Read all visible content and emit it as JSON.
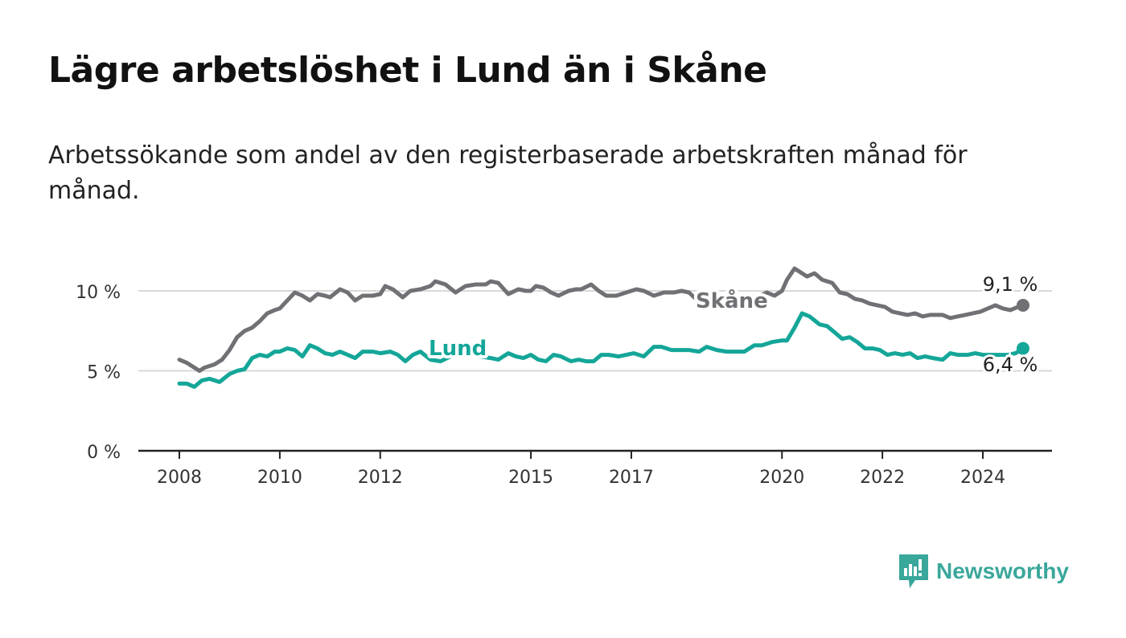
{
  "title": "Lägre arbetslöshet i Lund än i Skåne",
  "subtitle": "Arbetssökande som andel av den registerbaserade arbetskraften månad för månad.",
  "brand": {
    "name": "Newsworthy",
    "icon": "newsworthy-logo-icon"
  },
  "colors": {
    "skane": "#707075",
    "lund": "#14a698",
    "grid": "#d9d9d9",
    "axis": "#222222"
  },
  "chart_data": {
    "type": "line",
    "title": "Lägre arbetslöshet i Lund än i Skåne",
    "xlabel": "",
    "ylabel": "",
    "ylim": [
      0,
      10
    ],
    "xlim": [
      2008,
      2025
    ],
    "yticks": [
      {
        "value": 0,
        "label": "0 %"
      },
      {
        "value": 5,
        "label": "5 %"
      },
      {
        "value": 10,
        "label": "10 %"
      }
    ],
    "xticks": [
      {
        "value": 2008,
        "label": "2008"
      },
      {
        "value": 2010,
        "label": "2010"
      },
      {
        "value": 2012,
        "label": "2012"
      },
      {
        "value": 2015,
        "label": "2015"
      },
      {
        "value": 2017,
        "label": "2017"
      },
      {
        "value": 2020,
        "label": "2020"
      },
      {
        "value": 2022,
        "label": "2022"
      },
      {
        "value": 2024,
        "label": "2024"
      }
    ],
    "series": [
      {
        "name": "Skåne",
        "label": "Skåne",
        "end_label": "9,1 %",
        "end_value": 9.1,
        "points": [
          [
            2008.0,
            5.7
          ],
          [
            2008.15,
            5.5
          ],
          [
            2008.3,
            5.2
          ],
          [
            2008.4,
            5.0
          ],
          [
            2008.5,
            5.2
          ],
          [
            2008.7,
            5.4
          ],
          [
            2008.85,
            5.7
          ],
          [
            2009.0,
            6.3
          ],
          [
            2009.15,
            7.1
          ],
          [
            2009.3,
            7.5
          ],
          [
            2009.45,
            7.7
          ],
          [
            2009.6,
            8.1
          ],
          [
            2009.75,
            8.6
          ],
          [
            2009.9,
            8.8
          ],
          [
            2010.0,
            8.9
          ],
          [
            2010.15,
            9.4
          ],
          [
            2010.3,
            9.9
          ],
          [
            2010.45,
            9.7
          ],
          [
            2010.6,
            9.4
          ],
          [
            2010.75,
            9.8
          ],
          [
            2010.9,
            9.7
          ],
          [
            2011.0,
            9.6
          ],
          [
            2011.2,
            10.1
          ],
          [
            2011.35,
            9.9
          ],
          [
            2011.5,
            9.4
          ],
          [
            2011.65,
            9.7
          ],
          [
            2011.85,
            9.7
          ],
          [
            2012.0,
            9.8
          ],
          [
            2012.1,
            10.3
          ],
          [
            2012.25,
            10.1
          ],
          [
            2012.45,
            9.6
          ],
          [
            2012.6,
            10.0
          ],
          [
            2012.8,
            10.1
          ],
          [
            2013.0,
            10.3
          ],
          [
            2013.1,
            10.6
          ],
          [
            2013.3,
            10.4
          ],
          [
            2013.5,
            9.9
          ],
          [
            2013.7,
            10.3
          ],
          [
            2013.9,
            10.4
          ],
          [
            2014.1,
            10.4
          ],
          [
            2014.2,
            10.6
          ],
          [
            2014.35,
            10.5
          ],
          [
            2014.55,
            9.8
          ],
          [
            2014.75,
            10.1
          ],
          [
            2014.9,
            10.0
          ],
          [
            2015.0,
            10.0
          ],
          [
            2015.1,
            10.3
          ],
          [
            2015.25,
            10.2
          ],
          [
            2015.4,
            9.9
          ],
          [
            2015.55,
            9.7
          ],
          [
            2015.75,
            10.0
          ],
          [
            2015.9,
            10.1
          ],
          [
            2016.0,
            10.1
          ],
          [
            2016.2,
            10.4
          ],
          [
            2016.35,
            10.0
          ],
          [
            2016.5,
            9.7
          ],
          [
            2016.7,
            9.7
          ],
          [
            2016.9,
            9.9
          ],
          [
            2017.1,
            10.1
          ],
          [
            2017.25,
            10.0
          ],
          [
            2017.45,
            9.7
          ],
          [
            2017.65,
            9.9
          ],
          [
            2017.85,
            9.9
          ],
          [
            2018.0,
            10.0
          ],
          [
            2018.15,
            9.9
          ],
          [
            2018.25,
            9.6
          ],
          [
            2018.35,
            9.4
          ],
          [
            2019.5,
            9.6
          ],
          [
            2019.7,
            9.9
          ],
          [
            2019.85,
            9.7
          ],
          [
            2020.0,
            10.0
          ],
          [
            2020.1,
            10.7
          ],
          [
            2020.25,
            11.4
          ],
          [
            2020.35,
            11.2
          ],
          [
            2020.5,
            10.9
          ],
          [
            2020.65,
            11.1
          ],
          [
            2020.8,
            10.7
          ],
          [
            2021.0,
            10.5
          ],
          [
            2021.15,
            9.9
          ],
          [
            2021.3,
            9.8
          ],
          [
            2021.45,
            9.5
          ],
          [
            2021.6,
            9.4
          ],
          [
            2021.75,
            9.2
          ],
          [
            2021.9,
            9.1
          ],
          [
            2022.05,
            9.0
          ],
          [
            2022.2,
            8.7
          ],
          [
            2022.35,
            8.6
          ],
          [
            2022.5,
            8.5
          ],
          [
            2022.65,
            8.6
          ],
          [
            2022.8,
            8.4
          ],
          [
            2022.95,
            8.5
          ],
          [
            2023.05,
            8.5
          ],
          [
            2023.2,
            8.5
          ],
          [
            2023.35,
            8.3
          ],
          [
            2023.5,
            8.4
          ],
          [
            2023.65,
            8.5
          ],
          [
            2023.8,
            8.6
          ],
          [
            2023.95,
            8.7
          ],
          [
            2024.1,
            8.9
          ],
          [
            2024.25,
            9.1
          ],
          [
            2024.4,
            8.9
          ],
          [
            2024.55,
            8.8
          ],
          [
            2024.7,
            9.0
          ],
          [
            2024.8,
            9.1
          ]
        ]
      },
      {
        "name": "Lund",
        "label": "Lund",
        "end_label": "6,4 %",
        "end_value": 6.4,
        "points": [
          [
            2008.0,
            4.2
          ],
          [
            2008.15,
            4.2
          ],
          [
            2008.3,
            4.0
          ],
          [
            2008.45,
            4.4
          ],
          [
            2008.6,
            4.5
          ],
          [
            2008.8,
            4.3
          ],
          [
            2009.0,
            4.8
          ],
          [
            2009.15,
            5.0
          ],
          [
            2009.3,
            5.1
          ],
          [
            2009.45,
            5.8
          ],
          [
            2009.6,
            6.0
          ],
          [
            2009.75,
            5.9
          ],
          [
            2009.9,
            6.2
          ],
          [
            2010.0,
            6.2
          ],
          [
            2010.15,
            6.4
          ],
          [
            2010.3,
            6.3
          ],
          [
            2010.45,
            5.9
          ],
          [
            2010.6,
            6.6
          ],
          [
            2010.75,
            6.4
          ],
          [
            2010.9,
            6.1
          ],
          [
            2011.05,
            6.0
          ],
          [
            2011.2,
            6.2
          ],
          [
            2011.35,
            6.0
          ],
          [
            2011.5,
            5.8
          ],
          [
            2011.65,
            6.2
          ],
          [
            2011.85,
            6.2
          ],
          [
            2012.0,
            6.1
          ],
          [
            2012.2,
            6.2
          ],
          [
            2012.35,
            6.0
          ],
          [
            2012.5,
            5.6
          ],
          [
            2012.65,
            6.0
          ],
          [
            2012.8,
            6.2
          ],
          [
            2013.0,
            5.7
          ],
          [
            2013.2,
            5.6
          ],
          [
            2013.4,
            5.9
          ],
          [
            2013.6,
            6.0
          ],
          [
            2013.8,
            6.1
          ],
          [
            2014.0,
            5.9
          ],
          [
            2014.2,
            5.8
          ],
          [
            2014.35,
            5.7
          ],
          [
            2014.55,
            6.1
          ],
          [
            2014.7,
            5.9
          ],
          [
            2014.85,
            5.8
          ],
          [
            2015.0,
            6.0
          ],
          [
            2015.15,
            5.7
          ],
          [
            2015.3,
            5.6
          ],
          [
            2015.45,
            6.0
          ],
          [
            2015.6,
            5.9
          ],
          [
            2015.8,
            5.6
          ],
          [
            2015.95,
            5.7
          ],
          [
            2016.1,
            5.6
          ],
          [
            2016.25,
            5.6
          ],
          [
            2016.4,
            6.0
          ],
          [
            2016.55,
            6.0
          ],
          [
            2016.75,
            5.9
          ],
          [
            2016.9,
            6.0
          ],
          [
            2017.05,
            6.1
          ],
          [
            2017.25,
            5.9
          ],
          [
            2017.45,
            6.5
          ],
          [
            2017.6,
            6.5
          ],
          [
            2017.8,
            6.3
          ],
          [
            2017.95,
            6.3
          ],
          [
            2018.15,
            6.3
          ],
          [
            2018.35,
            6.2
          ],
          [
            2018.5,
            6.5
          ],
          [
            2018.7,
            6.3
          ],
          [
            2018.9,
            6.2
          ],
          [
            2019.05,
            6.2
          ],
          [
            2019.25,
            6.2
          ],
          [
            2019.45,
            6.6
          ],
          [
            2019.6,
            6.6
          ],
          [
            2019.8,
            6.8
          ],
          [
            2020.0,
            6.9
          ],
          [
            2020.1,
            6.9
          ],
          [
            2020.25,
            7.7
          ],
          [
            2020.4,
            8.6
          ],
          [
            2020.55,
            8.4
          ],
          [
            2020.75,
            7.9
          ],
          [
            2020.9,
            7.8
          ],
          [
            2021.05,
            7.4
          ],
          [
            2021.2,
            7.0
          ],
          [
            2021.35,
            7.1
          ],
          [
            2021.5,
            6.8
          ],
          [
            2021.65,
            6.4
          ],
          [
            2021.8,
            6.4
          ],
          [
            2021.95,
            6.3
          ],
          [
            2022.1,
            6.0
          ],
          [
            2022.25,
            6.1
          ],
          [
            2022.4,
            6.0
          ],
          [
            2022.55,
            6.1
          ],
          [
            2022.7,
            5.8
          ],
          [
            2022.85,
            5.9
          ],
          [
            2023.0,
            5.8
          ],
          [
            2023.2,
            5.7
          ],
          [
            2023.35,
            6.1
          ],
          [
            2023.5,
            6.0
          ],
          [
            2023.7,
            6.0
          ],
          [
            2023.85,
            6.1
          ],
          [
            2024.0,
            6.0
          ],
          [
            2024.15,
            6.0
          ],
          [
            2024.3,
            6.0
          ],
          [
            2024.5,
            6.0
          ],
          [
            2024.65,
            6.1
          ],
          [
            2024.8,
            6.4
          ]
        ]
      }
    ]
  }
}
